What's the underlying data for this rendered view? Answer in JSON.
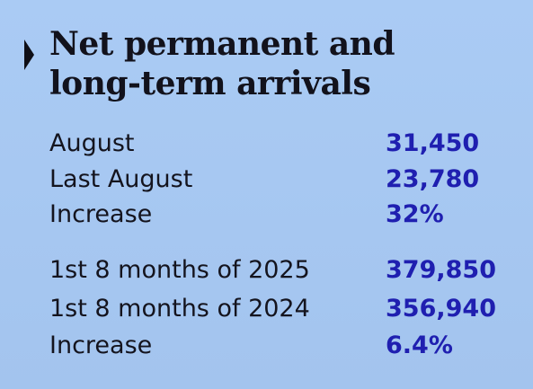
{
  "title": {
    "line1": "Net permanent and",
    "line2": "long-term arrivals"
  },
  "monthly": [
    {
      "label": "August",
      "value": "31,450"
    },
    {
      "label": "Last August",
      "value": "23,780"
    },
    {
      "label": "Increase",
      "value": "32%"
    }
  ],
  "year_to_date": [
    {
      "label": "1st 8 months of 2025",
      "value": "379,850"
    },
    {
      "label": "1st 8 months of 2024",
      "value": "356,940"
    },
    {
      "label": "Increase",
      "value": "6.4%"
    }
  ],
  "colors": {
    "background": "#a9c9f2",
    "value_accent": "#1f1fb0",
    "text": "#14141e"
  }
}
